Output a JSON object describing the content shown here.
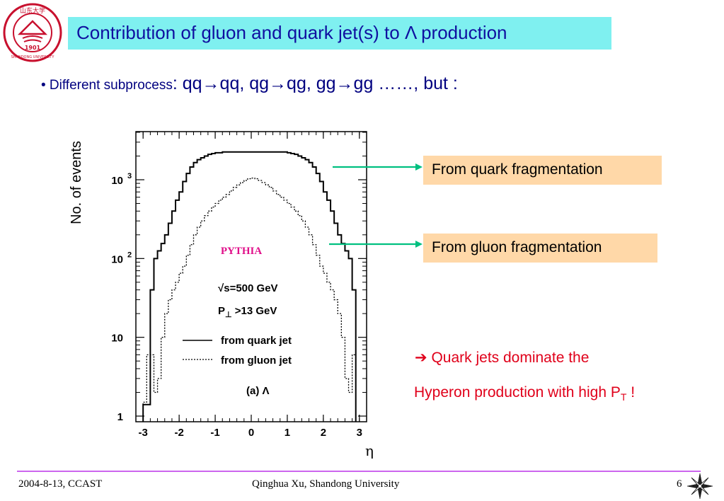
{
  "slide": {
    "title": "Contribution of gluon and quark jet(s) to Λ production",
    "bullet_prefix": "• Different subprocess",
    "bullet_text": ": qq→qq, qg→qg, gg→gg ……, but :",
    "quark_label": "From quark fragmentation",
    "gluon_label": "From gluon fragmentation",
    "conclusion_line1": "Quark jets dominate the",
    "conclusion_line2_text": "Hyperon production with high P",
    "conclusion_line2_sub": "T",
    "conclusion_line2_end": "  !",
    "arrow_glyph": "➔",
    "colors": {
      "title_bg": "#7ff0f0",
      "title_text": "#1010a0",
      "label_bg": "#ffd8a8",
      "conclusion": "#e0001a",
      "connector": "#00c080",
      "footer_rule": "#cc66ee"
    }
  },
  "footer": {
    "date": "2004-8-13,  CCAST",
    "author": "Qinghua Xu, Shandong University",
    "page": "6"
  },
  "logo": {
    "top_text": "山东大学",
    "bottom_text": "SHANDONG UNIVERSITY",
    "year": "1901"
  },
  "chart_data": {
    "type": "line",
    "ylabel": "No. of events",
    "xlabel": "η",
    "xlim": [
      -3.2,
      3.2
    ],
    "ylim": [
      1,
      10000
    ],
    "yscale": "log",
    "x_ticks": [
      "-3",
      "-2",
      "-1",
      "0",
      "1",
      "2",
      "3"
    ],
    "y_ticks": [
      {
        "base": "10",
        "exp": "3",
        "value": 1000
      },
      {
        "base": "10",
        "exp": "2",
        "value": 100
      },
      {
        "base": "10",
        "exp": "",
        "value": 10
      },
      {
        "base": "1",
        "exp": "",
        "value": 1
      }
    ],
    "annotations": {
      "generator": "PYTHIA",
      "energy": "√s=500 GeV",
      "pt_cut_prefix": "P",
      "pt_cut_sub": "⊥",
      "pt_cut_suffix": " >13 GeV",
      "panel": "(a) Λ"
    },
    "series": [
      {
        "name": "from quark jet",
        "style": "solid",
        "x": [
          -3.0,
          -2.8,
          -2.7,
          -2.6,
          -2.5,
          -2.4,
          -2.3,
          -2.2,
          -2.1,
          -2.0,
          -1.9,
          -1.8,
          -1.7,
          -1.6,
          -1.5,
          -1.4,
          -1.3,
          -1.2,
          -1.1,
          -1.0,
          -0.8,
          -0.6,
          -0.4,
          -0.2,
          0.0,
          0.2,
          0.4,
          0.6,
          0.8,
          1.0,
          1.1,
          1.2,
          1.3,
          1.4,
          1.5,
          1.6,
          1.7,
          1.8,
          1.9,
          2.0,
          2.1,
          2.2,
          2.3,
          2.4,
          2.5,
          2.6,
          2.7,
          2.8
        ],
        "y": [
          1.4,
          40,
          100,
          125,
          155,
          200,
          280,
          400,
          550,
          700,
          950,
          1200,
          1450,
          1650,
          1800,
          1900,
          2000,
          2100,
          2150,
          2200,
          2250,
          2250,
          2250,
          2250,
          2250,
          2250,
          2250,
          2250,
          2250,
          2200,
          2150,
          2100,
          2000,
          1900,
          1800,
          1650,
          1450,
          1200,
          950,
          700,
          550,
          400,
          280,
          200,
          155,
          125,
          100,
          40
        ]
      },
      {
        "name": "from gluon jet",
        "style": "dotted",
        "x": [
          -3.0,
          -2.9,
          -2.8,
          -2.7,
          -2.6,
          -2.5,
          -2.4,
          -2.3,
          -2.2,
          -2.1,
          -2.0,
          -1.9,
          -1.8,
          -1.7,
          -1.6,
          -1.5,
          -1.4,
          -1.3,
          -1.2,
          -1.1,
          -1.0,
          -0.9,
          -0.8,
          -0.7,
          -0.6,
          -0.5,
          -0.4,
          -0.3,
          -0.2,
          -0.1,
          0.0,
          0.1,
          0.2,
          0.3,
          0.4,
          0.5,
          0.6,
          0.7,
          0.8,
          0.9,
          1.0,
          1.1,
          1.2,
          1.3,
          1.4,
          1.5,
          1.6,
          1.7,
          1.8,
          1.9,
          2.0,
          2.1,
          2.2,
          2.3,
          2.4,
          2.5,
          2.6,
          2.7,
          2.8
        ],
        "y": [
          1.5,
          6,
          6,
          2,
          3,
          10,
          20,
          30,
          40,
          50,
          65,
          80,
          110,
          150,
          200,
          250,
          300,
          350,
          400,
          450,
          500,
          550,
          600,
          650,
          720,
          800,
          860,
          920,
          980,
          1030,
          1050,
          1030,
          980,
          920,
          860,
          800,
          720,
          650,
          600,
          550,
          500,
          450,
          400,
          350,
          300,
          250,
          200,
          150,
          110,
          80,
          65,
          50,
          40,
          30,
          20,
          10,
          3,
          2,
          6
        ]
      }
    ]
  }
}
